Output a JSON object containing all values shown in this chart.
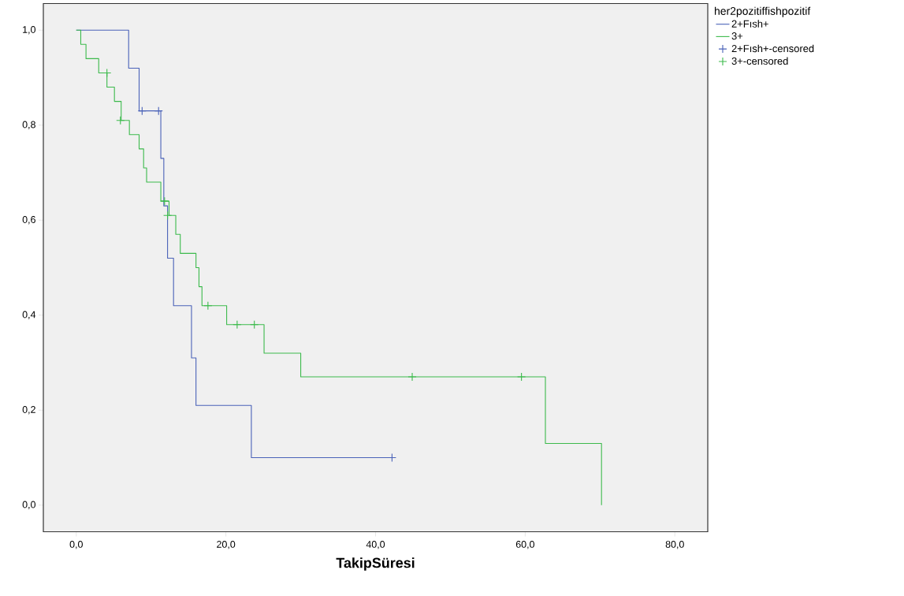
{
  "chart_data": {
    "type": "step",
    "xlabel": "TakipSüresi",
    "legend_title": "her2pozitiffishpozitif",
    "legend": "top right",
    "xlim": [
      -4.4,
      84.4
    ],
    "ylim": [
      -0.056,
      1.056
    ],
    "xticks": [
      {
        "value": 0,
        "label": "0,0"
      },
      {
        "value": 20,
        "label": "20,0"
      },
      {
        "value": 40,
        "label": "40,0"
      },
      {
        "value": 60,
        "label": "60,0"
      },
      {
        "value": 80,
        "label": "80,0"
      }
    ],
    "yticks": [
      {
        "value": 0,
        "label": "0,0"
      },
      {
        "value": 0.2,
        "label": "0,2"
      },
      {
        "value": 0.4,
        "label": "0,4"
      },
      {
        "value": 0.6,
        "label": "0,6"
      },
      {
        "value": 0.8,
        "label": "0,8"
      },
      {
        "value": 1,
        "label": "1,0"
      }
    ],
    "series": [
      {
        "name": "2+Fısh+",
        "color": "#4a62b8",
        "x": [
          0,
          7.0,
          8.4,
          11.3,
          11.7,
          12.2,
          13.0,
          15.4,
          16.0,
          23.4,
          42.2
        ],
        "values": [
          1.0,
          0.92,
          0.83,
          0.73,
          0.63,
          0.52,
          0.42,
          0.31,
          0.21,
          0.1,
          0.1
        ]
      },
      {
        "name": "3+",
        "color": "#3cba4c",
        "x": [
          0,
          0.6,
          1.3,
          3.0,
          4.1,
          5.1,
          6.0,
          7.1,
          8.4,
          9.0,
          9.4,
          11.3,
          12.4,
          13.3,
          13.9,
          16.0,
          16.4,
          16.8,
          20.1,
          25.1,
          30.0,
          62.7,
          70.2
        ],
        "values": [
          1.0,
          0.97,
          0.94,
          0.91,
          0.88,
          0.85,
          0.81,
          0.78,
          0.75,
          0.71,
          0.68,
          0.64,
          0.61,
          0.57,
          0.53,
          0.5,
          0.46,
          0.42,
          0.38,
          0.32,
          0.27,
          0.13,
          0.0
        ]
      },
      {
        "name": "2+Fısh+-censored",
        "type": "scatter",
        "marker": "cross",
        "color": "#4a62b8",
        "x": [
          8.8,
          11.0,
          42.2
        ],
        "values": [
          0.83,
          0.83,
          0.1
        ]
      },
      {
        "name": "3+-censored",
        "type": "scatter",
        "marker": "cross",
        "color": "#3cba4c",
        "x": [
          4.1,
          5.9,
          11.8,
          12.2,
          17.6,
          21.5,
          23.8,
          44.9,
          59.5
        ],
        "values": [
          0.91,
          0.81,
          0.64,
          0.61,
          0.42,
          0.38,
          0.38,
          0.27,
          0.27
        ]
      }
    ]
  }
}
